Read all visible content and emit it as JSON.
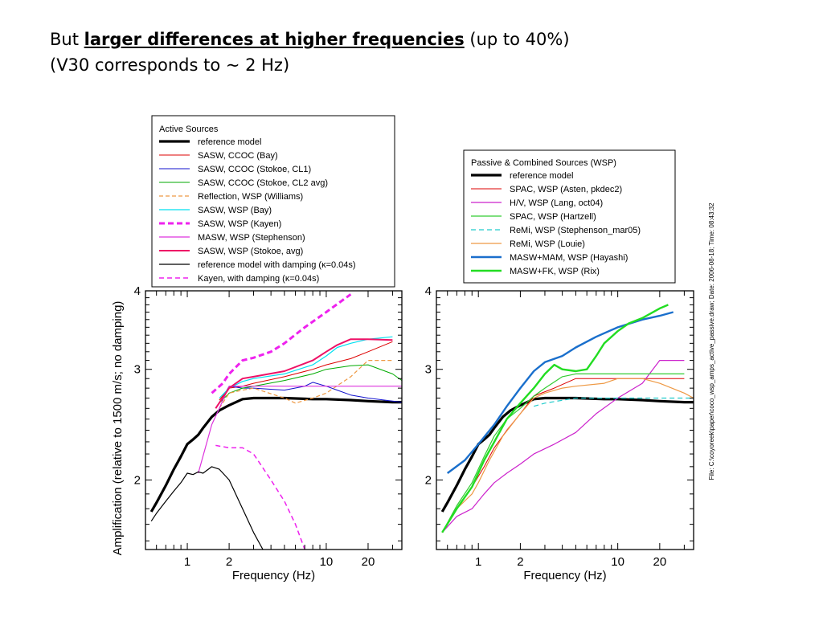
{
  "heading": {
    "line1_prefix": "But ",
    "line1_bold": "larger differences at higher frequencies",
    "line1_suffix": " (up to 40%)",
    "line2": "(V30 corresponds to ~ 2 Hz)"
  },
  "file_label": "File: C:\\coyoreek\\paper\\coco_wsp_amps_active_passive.draw; Date: 2006-08-18; Time: 08:43:32",
  "chart_data": [
    {
      "type": "line",
      "panel": "left",
      "xlabel": "Frequency (Hz)",
      "ylabel": "Amplification (relative to 1500 m/s; no damping)",
      "x_scale": "log",
      "y_scale": "log",
      "xlim": [
        0.5,
        35
      ],
      "ylim": [
        1.55,
        4
      ],
      "xticks_labeled": [
        1,
        2,
        10,
        20
      ],
      "yticks_labeled": [
        2,
        3,
        4
      ],
      "legend_title": "Active Sources",
      "legend_position": "top",
      "series": [
        {
          "name": "reference model",
          "color": "#000000",
          "width": 3.2,
          "dash": "",
          "x": [
            0.55,
            0.6,
            0.7,
            0.8,
            0.9,
            1.0,
            1.1,
            1.2,
            1.3,
            1.5,
            1.7,
            2.0,
            2.5,
            3,
            5,
            8,
            10,
            15,
            20,
            30,
            35
          ],
          "y": [
            1.78,
            1.84,
            1.96,
            2.08,
            2.18,
            2.28,
            2.32,
            2.36,
            2.42,
            2.52,
            2.58,
            2.63,
            2.69,
            2.7,
            2.7,
            2.69,
            2.69,
            2.68,
            2.67,
            2.66,
            2.66
          ]
        },
        {
          "name": "SASW, CCOC (Bay)",
          "color": "#dd0000",
          "width": 1,
          "dash": "",
          "x": [
            1.7,
            2.0,
            2.5,
            3,
            5,
            8,
            10,
            15,
            20,
            30
          ],
          "y": [
            2.68,
            2.8,
            2.82,
            2.85,
            2.92,
            3.0,
            3.05,
            3.12,
            3.2,
            3.32
          ]
        },
        {
          "name": "SASW, CCOC (Stokoe, CL1)",
          "color": "#1010cc",
          "width": 1,
          "dash": "",
          "x": [
            1.7,
            2.0,
            2.5,
            3,
            5,
            7,
            8,
            10,
            12,
            15,
            20,
            30,
            35
          ],
          "y": [
            2.65,
            2.82,
            2.8,
            2.8,
            2.78,
            2.82,
            2.86,
            2.82,
            2.78,
            2.73,
            2.7,
            2.67,
            2.66
          ]
        },
        {
          "name": "SASW, CCOC (Stokoe, CL2 avg)",
          "color": "#00aa00",
          "width": 1,
          "dash": "",
          "x": [
            1.7,
            2.0,
            2.5,
            3,
            5,
            8,
            10,
            15,
            20,
            30,
            35
          ],
          "y": [
            2.65,
            2.75,
            2.8,
            2.82,
            2.88,
            2.95,
            3.0,
            3.04,
            3.05,
            2.95,
            2.88
          ]
        },
        {
          "name": "Reflection, WSP (Williams)",
          "color": "#ee9944",
          "width": 1.2,
          "dash": "5,3",
          "x": [
            1.7,
            2.0,
            2.5,
            3,
            5,
            6,
            8,
            10,
            15,
            20,
            30
          ],
          "y": [
            2.6,
            2.75,
            2.78,
            2.8,
            2.7,
            2.65,
            2.7,
            2.75,
            2.92,
            3.1,
            3.1
          ]
        },
        {
          "name": "SASW, WSP (Bay)",
          "color": "#00e0f0",
          "width": 1.2,
          "dash": "",
          "x": [
            1.7,
            2.0,
            2.5,
            3,
            5,
            8,
            10,
            12,
            15,
            20,
            30
          ],
          "y": [
            2.7,
            2.8,
            2.87,
            2.9,
            2.95,
            3.05,
            3.15,
            3.25,
            3.3,
            3.35,
            3.38
          ]
        },
        {
          "name": "SASW, WSP (Kayen)",
          "color": "#ee22ee",
          "width": 3,
          "dash": "7,4",
          "x": [
            1.5,
            1.8,
            2.0,
            2.5,
            3,
            4,
            5,
            7,
            10,
            15
          ],
          "y": [
            2.75,
            2.85,
            2.95,
            3.1,
            3.13,
            3.2,
            3.3,
            3.5,
            3.7,
            3.95
          ]
        },
        {
          "name": "MASW, WSP (Stephenson)",
          "color": "#dd33dd",
          "width": 1.2,
          "dash": "",
          "x": [
            1.2,
            1.5,
            1.7,
            2.0,
            2.5,
            35
          ],
          "y": [
            2.05,
            2.45,
            2.6,
            2.82,
            2.82,
            2.82
          ]
        },
        {
          "name": "SASW, WSP (Stokoe, avg)",
          "color": "#ee1166",
          "width": 2,
          "dash": "",
          "x": [
            1.6,
            2.0,
            2.5,
            3,
            5,
            8,
            10,
            12,
            15,
            20,
            30
          ],
          "y": [
            2.6,
            2.8,
            2.9,
            2.92,
            2.98,
            3.1,
            3.2,
            3.28,
            3.35,
            3.35,
            3.34
          ]
        },
        {
          "name": "reference model with damping (κ=0.04s)",
          "color": "#000000",
          "width": 1.2,
          "dash": "",
          "x": [
            0.55,
            0.6,
            0.7,
            0.8,
            0.9,
            1.0,
            1.1,
            1.2,
            1.3,
            1.5,
            1.7,
            2.0,
            2.5,
            3,
            3.5
          ],
          "y": [
            1.72,
            1.77,
            1.85,
            1.92,
            1.98,
            2.05,
            2.04,
            2.06,
            2.05,
            2.1,
            2.08,
            2.0,
            1.8,
            1.65,
            1.55
          ]
        },
        {
          "name": "Kayen, with damping (κ=0.04s)",
          "color": "#ee22ee",
          "width": 1.5,
          "dash": "6,4",
          "x": [
            1.6,
            2.0,
            2.5,
            3,
            4,
            5,
            6,
            7
          ],
          "y": [
            2.27,
            2.25,
            2.25,
            2.2,
            2.0,
            1.85,
            1.7,
            1.55
          ]
        }
      ]
    },
    {
      "type": "line",
      "panel": "right",
      "xlabel": "Frequency (Hz)",
      "x_scale": "log",
      "y_scale": "log",
      "xlim": [
        0.5,
        35
      ],
      "ylim": [
        1.55,
        4
      ],
      "xticks_labeled": [
        1,
        2,
        10,
        20
      ],
      "yticks_labeled": [
        2,
        3,
        4
      ],
      "legend_title": "Passive & Combined Sources (WSP)",
      "legend_position": "top",
      "series": [
        {
          "name": "reference model",
          "color": "#000000",
          "width": 3.2,
          "dash": "",
          "x": [
            0.55,
            0.6,
            0.7,
            0.8,
            0.9,
            1.0,
            1.1,
            1.2,
            1.3,
            1.5,
            1.7,
            2.0,
            2.5,
            3,
            5,
            8,
            10,
            15,
            20,
            30,
            35
          ],
          "y": [
            1.78,
            1.84,
            1.96,
            2.08,
            2.18,
            2.28,
            2.32,
            2.36,
            2.42,
            2.52,
            2.58,
            2.63,
            2.69,
            2.7,
            2.7,
            2.69,
            2.69,
            2.68,
            2.67,
            2.66,
            2.66
          ]
        },
        {
          "name": "SPAC, WSP (Asten, pkdec2)",
          "color": "#dd0000",
          "width": 1,
          "dash": "",
          "x": [
            0.55,
            0.7,
            0.9,
            1.1,
            1.3,
            1.6,
            2.0,
            2.5,
            3.5,
            5,
            10,
            20,
            30
          ],
          "y": [
            1.65,
            1.8,
            1.95,
            2.1,
            2.25,
            2.4,
            2.55,
            2.72,
            2.8,
            2.9,
            2.9,
            2.9,
            2.9
          ]
        },
        {
          "name": "H/V, WSP (Lang, oct04)",
          "color": "#cc22cc",
          "width": 1.2,
          "dash": "",
          "x": [
            0.55,
            0.7,
            0.9,
            1.1,
            1.3,
            1.6,
            2.0,
            2.5,
            3.5,
            5,
            7,
            10,
            15,
            20,
            30
          ],
          "y": [
            1.65,
            1.75,
            1.8,
            1.9,
            1.98,
            2.05,
            2.12,
            2.2,
            2.28,
            2.38,
            2.55,
            2.7,
            2.85,
            3.1,
            3.1
          ]
        },
        {
          "name": "SPAC, WSP (Hartzell)",
          "color": "#33cc33",
          "width": 1.2,
          "dash": "",
          "x": [
            0.55,
            0.7,
            0.9,
            1.1,
            1.3,
            1.6,
            2.0,
            2.5,
            3,
            4,
            5,
            10,
            20,
            30
          ],
          "y": [
            1.65,
            1.82,
            1.98,
            2.18,
            2.35,
            2.5,
            2.6,
            2.72,
            2.8,
            2.92,
            2.95,
            2.95,
            2.95,
            2.95
          ]
        },
        {
          "name": "ReMi, WSP (Stephenson_mar05)",
          "color": "#22cccc",
          "width": 1.2,
          "dash": "6,4",
          "x": [
            2.5,
            3,
            5,
            8,
            10,
            20,
            35
          ],
          "y": [
            2.62,
            2.65,
            2.7,
            2.7,
            2.7,
            2.7,
            2.7
          ]
        },
        {
          "name": "ReMi, WSP (Louie)",
          "color": "#ee9944",
          "width": 1.2,
          "dash": "",
          "x": [
            0.55,
            0.7,
            0.9,
            1.0,
            1.2,
            1.5,
            2.0,
            2.5,
            3,
            4,
            5,
            8,
            10,
            15,
            20,
            30,
            35
          ],
          "y": [
            1.65,
            1.8,
            1.9,
            1.98,
            2.15,
            2.35,
            2.55,
            2.7,
            2.75,
            2.8,
            2.82,
            2.85,
            2.9,
            2.9,
            2.85,
            2.75,
            2.7
          ]
        },
        {
          "name": "MASW+MAM, WSP (Hayashi)",
          "color": "#1a6fcc",
          "width": 2.4,
          "dash": "",
          "x": [
            0.6,
            0.8,
            1.0,
            1.3,
            1.6,
            2.0,
            2.5,
            3,
            4,
            5,
            7,
            10,
            15,
            20,
            25
          ],
          "y": [
            2.05,
            2.15,
            2.28,
            2.45,
            2.62,
            2.8,
            2.98,
            3.08,
            3.15,
            3.25,
            3.38,
            3.5,
            3.6,
            3.65,
            3.7
          ]
        },
        {
          "name": "MASW+FK, WSP (Rix)",
          "color": "#22dd22",
          "width": 2.4,
          "dash": "",
          "x": [
            0.55,
            0.7,
            0.9,
            1.1,
            1.3,
            1.6,
            2.0,
            2.5,
            3,
            3.5,
            4,
            5,
            6,
            7,
            8,
            10,
            12,
            15,
            20,
            23
          ],
          "y": [
            1.65,
            1.8,
            1.95,
            2.15,
            2.3,
            2.5,
            2.65,
            2.8,
            2.95,
            3.05,
            3.0,
            2.98,
            3.0,
            3.15,
            3.3,
            3.45,
            3.55,
            3.62,
            3.75,
            3.8
          ]
        }
      ]
    }
  ]
}
